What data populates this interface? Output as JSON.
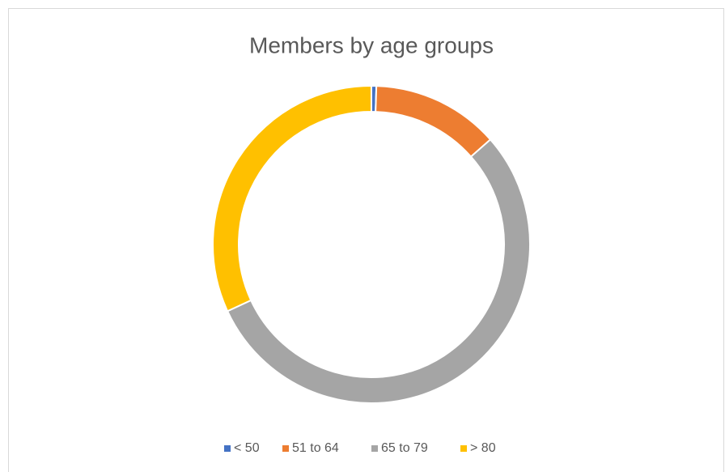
{
  "chart_data": {
    "type": "donut",
    "title": "Members by age groups",
    "categories": [
      "< 50",
      "51 to 64",
      "65 to 79",
      "> 80"
    ],
    "values": [
      0.5,
      13,
      54.6,
      31.9
    ],
    "colors": [
      "#4472c4",
      "#ed7d31",
      "#a5a5a5",
      "#ffc000"
    ],
    "legend": "bottom"
  }
}
